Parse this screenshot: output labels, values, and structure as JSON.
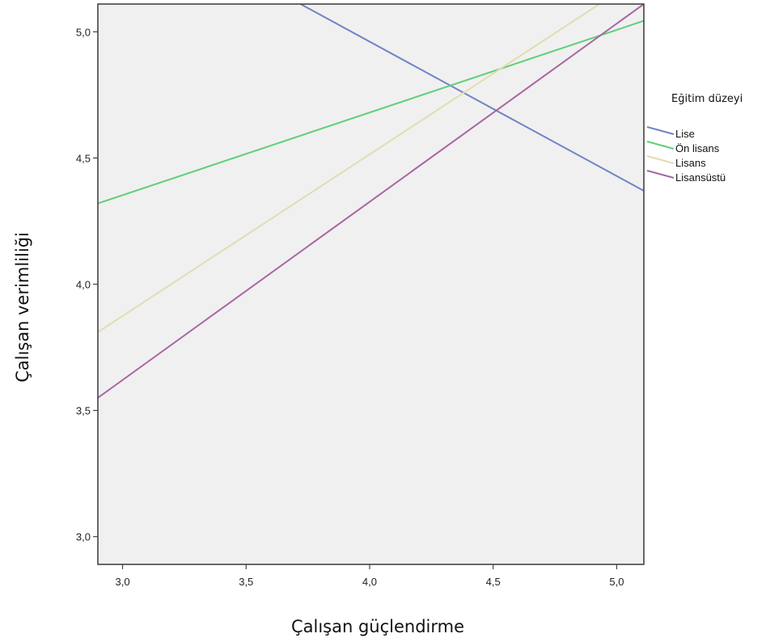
{
  "chart_data": {
    "type": "line",
    "xlabel": "Çalışan güçlendirme",
    "ylabel": "Çalışan verimliliği",
    "xlim": [
      2.9,
      5.11
    ],
    "ylim": [
      2.89,
      5.11
    ],
    "x_ticks": [
      3.0,
      3.5,
      4.0,
      4.5,
      5.0
    ],
    "x_tick_labels": [
      "3,0",
      "3,5",
      "4,0",
      "4,5",
      "5,0"
    ],
    "y_ticks": [
      3.0,
      3.5,
      4.0,
      4.5,
      5.0
    ],
    "y_tick_labels": [
      "3,0",
      "3,5",
      "4,0",
      "4,5",
      "5,0"
    ],
    "grid": false,
    "plot_background": "#f0f0f0",
    "legend": {
      "title": "Eğitim düzeyi",
      "placement": "right"
    },
    "series": [
      {
        "name": "Lise",
        "color": "#6f84c6",
        "x": [
          3.72,
          5.11
        ],
        "y": [
          5.11,
          4.37
        ]
      },
      {
        "name": "Ön lisans",
        "color": "#5fcf7a",
        "x": [
          2.9,
          5.13
        ],
        "y": [
          4.32,
          5.05
        ]
      },
      {
        "name": "Lisans",
        "color": "#e2ddb0",
        "x": [
          2.9,
          4.93
        ],
        "y": [
          3.81,
          5.11
        ]
      },
      {
        "name": "Lisansüstü",
        "color": "#a865a3",
        "x": [
          2.9,
          5.11
        ],
        "y": [
          3.55,
          5.11
        ]
      }
    ]
  }
}
